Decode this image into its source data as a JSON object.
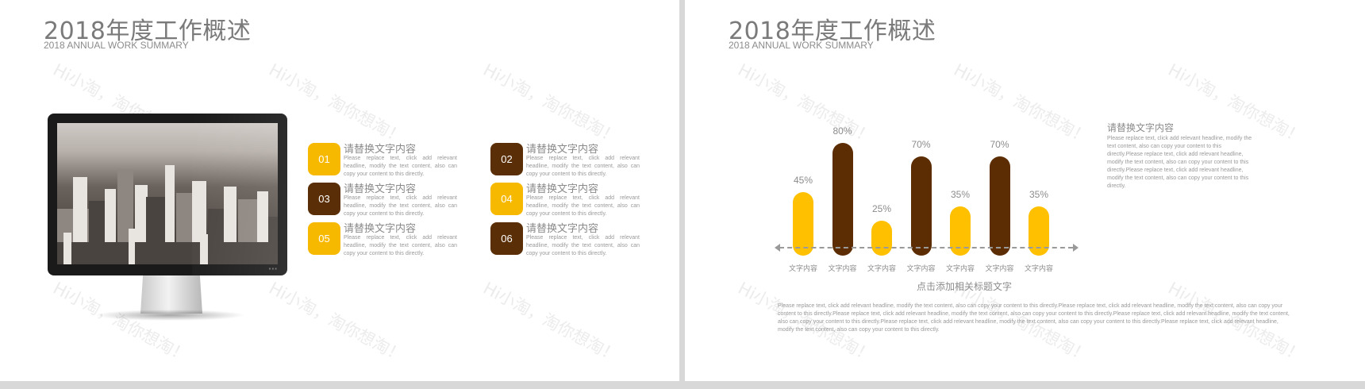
{
  "slides": [
    {
      "title": "2018年度工作概述",
      "subtitle": "2018 ANNUAL WORK SUMMARY",
      "items": [
        {
          "number": "01",
          "title": "请替换文字内容",
          "body": "Please replace text, click add relevant headline, modify the text content, also can copy your content to this directly."
        },
        {
          "number": "02",
          "title": "请替换文字内容",
          "body": "Please replace text, click add relevant headline, modify the text content, also can copy your content to this directly."
        },
        {
          "number": "03",
          "title": "请替换文字内容",
          "body": "Please replace text, click add relevant headline, modify the text content, also can copy your content to this directly."
        },
        {
          "number": "04",
          "title": "请替换文字内容",
          "body": "Please replace text, click add relevant headline, modify the text content, also can copy your content to this directly."
        },
        {
          "number": "05",
          "title": "请替换文字内容",
          "body": "Please replace text, click add relevant headline, modify the text content, also can copy your content to this directly."
        },
        {
          "number": "06",
          "title": "请替换文字内容",
          "body": "Please replace text, click add relevant headline, modify the text content, also can copy your content to this directly."
        }
      ]
    },
    {
      "title": "2018年度工作概述",
      "subtitle": "2018 ANNUAL WORK SUMMARY",
      "chart_caption": "点击添加相关标题文字",
      "side_title": "请替换文字内容",
      "side_body": "Please replace text, click add relevant headline, modify the text content, also can copy your content to this directly.Please replace text, click add relevant headline, modify the text content, also can copy your content to this directly.Please replace text, click add relevant headline, modify the text content, also can copy your content to this directly.",
      "bottom_text": "Please replace text, click add relevant headline, modify the text content, also can copy your content to this directly.Please replace text, click add relevant headline, modify the text content, also can copy your content to this directly.Please replace text, click add relevant headline, modify the text content, also can copy your content to this directly.Please replace text, click add relevant headline, modify the text content, also can copy your content to this directly.Please replace text, click add relevant headline, modify the text content, also can copy your content to this directly.Please replace text, click add relevant headline, modify the text content, also can copy your content to this directly."
    }
  ],
  "watermark_text": "Hi小淘，淘你想淘！",
  "colors": {
    "yellow": "#ffc000",
    "brown": "#5c2d02",
    "title_gray": "#7a7a7a"
  },
  "chart_data": {
    "type": "bar",
    "categories": [
      "文字内容",
      "文字内容",
      "文字内容",
      "文字内容",
      "文字内容",
      "文字内容",
      "文字内容"
    ],
    "values": [
      45,
      80,
      25,
      70,
      35,
      70,
      35
    ],
    "value_labels": [
      "45%",
      "80%",
      "25%",
      "70%",
      "35%",
      "70%",
      "35%"
    ],
    "bar_colors": [
      "#ffc000",
      "#5c2d02",
      "#ffc000",
      "#5c2d02",
      "#ffc000",
      "#5c2d02",
      "#ffc000"
    ],
    "ylim": [
      0,
      100
    ],
    "title": "",
    "xlabel": "",
    "ylabel": "",
    "grid": false,
    "legend": "none"
  }
}
